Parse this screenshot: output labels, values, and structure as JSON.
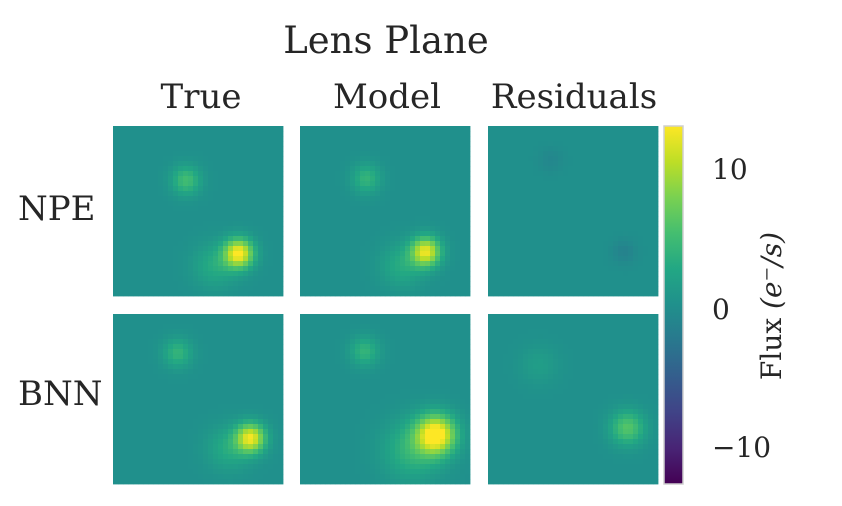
{
  "chart_data": {
    "type": "heatmap",
    "title": "Lens Plane",
    "columns": [
      "True",
      "Model",
      "Residuals"
    ],
    "rows": [
      "NPE",
      "BNN"
    ],
    "colormap": "viridis",
    "colorbar": {
      "label": "Flux",
      "unit": "(e⁻/s)",
      "range": [
        -13,
        13
      ],
      "ticks": [
        10,
        0,
        -10
      ],
      "tick_labels": [
        "10",
        "0",
        "−10"
      ]
    },
    "panels": [
      {
        "row": "NPE",
        "col": "True",
        "sources": [
          {
            "u": 0.43,
            "v": 0.68,
            "s": 0.06,
            "a": 5
          },
          {
            "u": 0.74,
            "v": 0.25,
            "s": 0.06,
            "a": 13
          },
          {
            "u": 0.6,
            "v": 0.18,
            "s": 0.09,
            "a": 3
          }
        ]
      },
      {
        "row": "NPE",
        "col": "Model",
        "sources": [
          {
            "u": 0.39,
            "v": 0.69,
            "s": 0.06,
            "a": 4
          },
          {
            "u": 0.74,
            "v": 0.26,
            "s": 0.06,
            "a": 12
          },
          {
            "u": 0.6,
            "v": 0.18,
            "s": 0.09,
            "a": 3
          }
        ]
      },
      {
        "row": "NPE",
        "col": "Residuals",
        "sources": [
          {
            "u": 0.37,
            "v": 0.8,
            "s": 0.05,
            "a": -1
          },
          {
            "u": 0.8,
            "v": 0.26,
            "s": 0.05,
            "a": -1.5
          }
        ]
      },
      {
        "row": "BNN",
        "col": "True",
        "sources": [
          {
            "u": 0.38,
            "v": 0.77,
            "s": 0.06,
            "a": 4
          },
          {
            "u": 0.81,
            "v": 0.27,
            "s": 0.06,
            "a": 12
          },
          {
            "u": 0.68,
            "v": 0.21,
            "s": 0.09,
            "a": 3
          }
        ]
      },
      {
        "row": "BNN",
        "col": "Model",
        "sources": [
          {
            "u": 0.38,
            "v": 0.78,
            "s": 0.06,
            "a": 4
          },
          {
            "u": 0.8,
            "v": 0.29,
            "s": 0.08,
            "a": 14
          },
          {
            "u": 0.66,
            "v": 0.2,
            "s": 0.12,
            "a": 4
          }
        ]
      },
      {
        "row": "BNN",
        "col": "Residuals",
        "sources": [
          {
            "u": 0.3,
            "v": 0.7,
            "s": 0.08,
            "a": 1.5
          },
          {
            "u": 0.82,
            "v": 0.33,
            "s": 0.07,
            "a": 6
          }
        ]
      }
    ]
  }
}
